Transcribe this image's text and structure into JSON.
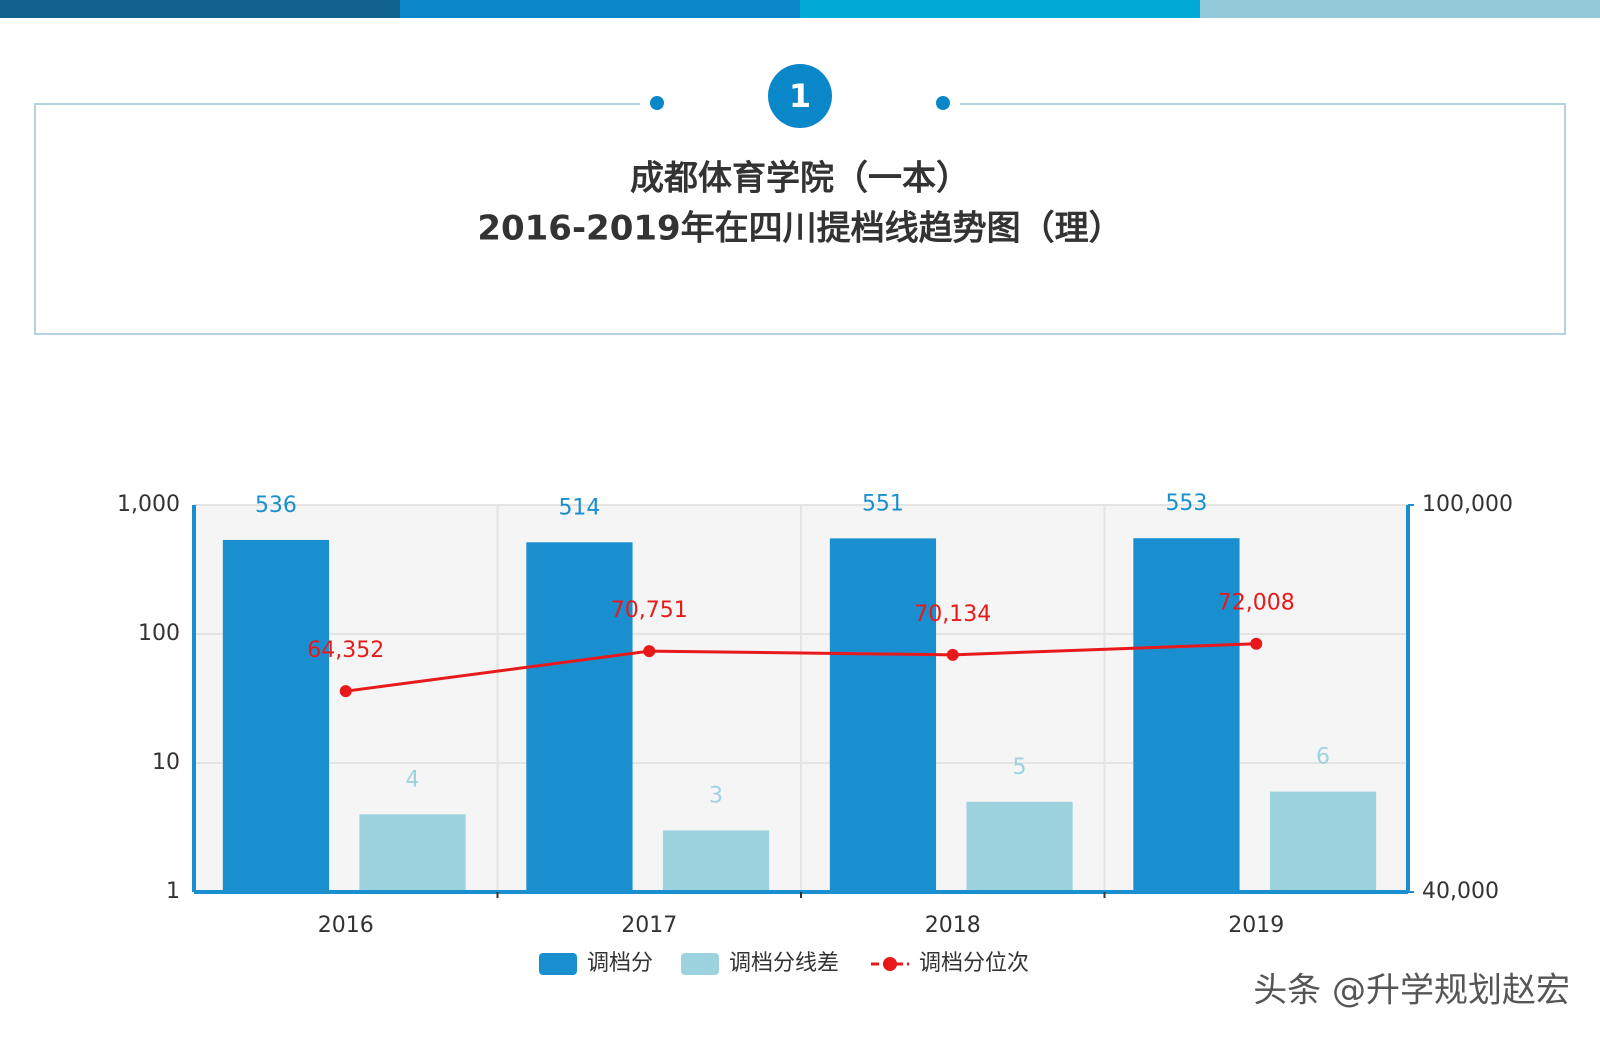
{
  "badge": "1",
  "watermark": "头条 @升学规划赵宏",
  "chart_data": {
    "type": "bar-line",
    "title": [
      "成都体育学院（一本）",
      "2016-2019年在四川提档线趋势图（理）"
    ],
    "categories": [
      "2016",
      "2017",
      "2018",
      "2019"
    ],
    "series": [
      {
        "name": "调档分",
        "type": "bar",
        "color": "#1a8fd0",
        "label_color": "#1a8fd0",
        "values": [
          536,
          514,
          551,
          553
        ]
      },
      {
        "name": "调档分线差",
        "type": "bar",
        "color": "#9dd2df",
        "label_color": "#9dd2df",
        "values": [
          4,
          3,
          5,
          6
        ]
      },
      {
        "name": "调档分位次",
        "type": "line",
        "axis": "y2",
        "color": "#e8191a",
        "label_color": "#e8191a",
        "values": [
          64352,
          70751,
          70134,
          72008
        ],
        "value_labels": [
          "64,352",
          "70,751",
          "70,134",
          "72,008"
        ]
      }
    ],
    "ylim": [
      1,
      1000
    ],
    "ylog": true,
    "yticks": [
      1,
      10,
      100,
      {
        "value": 1000,
        "label": "1,000"
      }
    ],
    "y2lim": [
      40000,
      100000
    ],
    "y2log": true,
    "y2ticks": [
      {
        "value": 40000,
        "label": "40,000"
      },
      {
        "value": 100000,
        "label": "100,000"
      }
    ],
    "grid": true,
    "legend": "bottom"
  }
}
